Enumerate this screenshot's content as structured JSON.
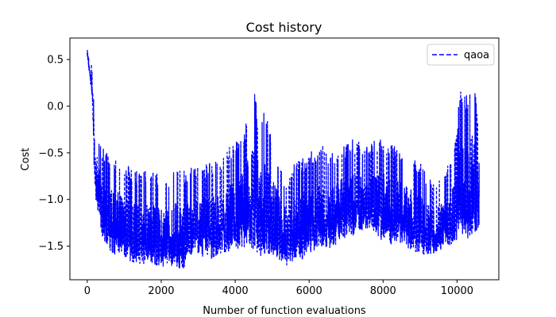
{
  "chart_data": {
    "type": "line",
    "title": "Cost history",
    "xlabel": "Number of function evaluations",
    "ylabel": "Cost",
    "xlim": [
      -470,
      11130
    ],
    "ylim": [
      -1.86,
      0.73
    ],
    "xticks": [
      0,
      2000,
      4000,
      6000,
      8000,
      10000
    ],
    "yticks": [
      -1.5,
      -1.0,
      -0.5,
      0.0,
      0.5
    ],
    "ytick_labels": [
      "−1.5",
      "−1.0",
      "−0.5",
      "0.0",
      "0.5"
    ],
    "grid": false,
    "legend": {
      "position": "top-right"
    },
    "series": [
      {
        "name": "qaoa",
        "color": "#0000ff",
        "linestyle": "dashed",
        "n_points": 10600,
        "envelope": {
          "x": [
            0,
            50,
            100,
            150,
            200,
            300,
            400,
            600,
            800,
            1000,
            1200,
            1400,
            1600,
            1800,
            2000,
            2200,
            2400,
            2600,
            2800,
            3000,
            3200,
            3400,
            3600,
            3800,
            4000,
            4200,
            4400,
            4500,
            4600,
            4700,
            4800,
            5000,
            5200,
            5400,
            5600,
            5800,
            6000,
            6200,
            6400,
            6600,
            6800,
            7000,
            7200,
            7400,
            7600,
            7800,
            8000,
            8200,
            8400,
            8600,
            8800,
            9000,
            9200,
            9400,
            9600,
            9800,
            9950,
            10100,
            10300,
            10450,
            10600
          ],
          "upper": [
            0.66,
            0.6,
            0.52,
            0.3,
            -0.1,
            -0.3,
            -0.45,
            -0.5,
            -0.55,
            -0.6,
            -0.65,
            -0.7,
            -0.68,
            -0.7,
            -0.75,
            -0.72,
            -0.65,
            -0.7,
            -0.65,
            -0.6,
            -0.62,
            -0.55,
            -0.6,
            -0.45,
            -0.35,
            -0.25,
            0.0,
            0.2,
            0.0,
            -0.1,
            -0.05,
            -0.3,
            -0.6,
            -0.8,
            -0.6,
            -0.55,
            -0.5,
            -0.45,
            -0.4,
            -0.5,
            -0.45,
            -0.4,
            -0.35,
            -0.4,
            -0.45,
            -0.35,
            -0.3,
            -0.4,
            -0.45,
            -0.5,
            -0.55,
            -0.6,
            -0.75,
            -0.85,
            -0.75,
            -0.6,
            -0.3,
            0.2,
            0.15,
            0.36,
            -0.25
          ],
          "lower": [
            0.5,
            0.35,
            0.2,
            -0.1,
            -0.9,
            -1.2,
            -1.4,
            -1.55,
            -1.6,
            -1.62,
            -1.68,
            -1.7,
            -1.68,
            -1.7,
            -1.72,
            -1.7,
            -1.72,
            -1.75,
            -1.6,
            -1.6,
            -1.62,
            -1.65,
            -1.62,
            -1.6,
            -1.6,
            -1.55,
            -1.5,
            -1.55,
            -1.6,
            -1.62,
            -1.6,
            -1.6,
            -1.65,
            -1.72,
            -1.68,
            -1.65,
            -1.58,
            -1.55,
            -1.5,
            -1.55,
            -1.45,
            -1.4,
            -1.38,
            -1.35,
            -1.3,
            -1.4,
            -1.45,
            -1.48,
            -1.45,
            -1.5,
            -1.55,
            -1.58,
            -1.6,
            -1.58,
            -1.55,
            -1.5,
            -1.45,
            -1.38,
            -1.42,
            -1.4,
            -1.3
          ]
        }
      }
    ]
  }
}
